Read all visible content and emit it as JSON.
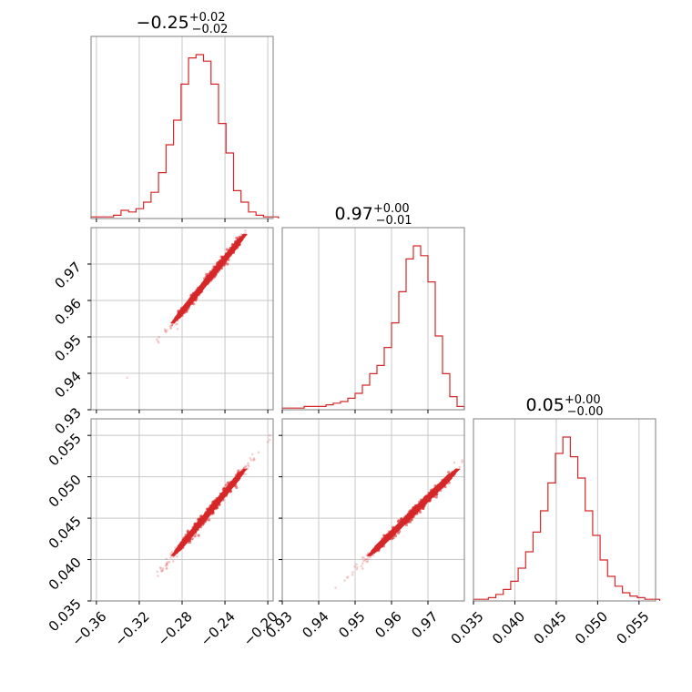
{
  "chart_data": {
    "type": "corner",
    "color": "#d62728",
    "parameters": [
      {
        "title": {
          "median": "−0.25",
          "plus": "+0.02",
          "minus": "−0.02"
        },
        "range": [
          -0.365,
          -0.195
        ],
        "ticks": [
          -0.36,
          -0.32,
          -0.28,
          -0.24,
          -0.2
        ],
        "tick_labels": [
          "−0.36",
          "−0.32",
          "−0.28",
          "−0.24",
          "−0.20"
        ],
        "hist_x": [
          -0.365,
          -0.358,
          -0.351,
          -0.344,
          -0.337,
          -0.33,
          -0.323,
          -0.316,
          -0.309,
          -0.302,
          -0.295,
          -0.288,
          -0.281,
          -0.274,
          -0.267,
          -0.26,
          -0.253,
          -0.246,
          -0.239,
          -0.232,
          -0.225,
          -0.218,
          -0.211,
          -0.204,
          -0.197
        ],
        "hist_y": [
          0.01,
          0.01,
          0.01,
          0.02,
          0.05,
          0.04,
          0.06,
          0.1,
          0.16,
          0.28,
          0.45,
          0.6,
          0.82,
          0.98,
          1.0,
          0.96,
          0.82,
          0.58,
          0.4,
          0.17,
          0.1,
          0.04,
          0.02,
          0.01,
          0.01
        ]
      },
      {
        "title": {
          "median": "0.97",
          "plus": "+0.00",
          "minus": "−0.01"
        },
        "range": [
          0.93,
          0.98
        ],
        "ticks": [
          0.93,
          0.94,
          0.95,
          0.96,
          0.97
        ],
        "tick_labels": [
          "0.93",
          "0.94",
          "0.95",
          "0.96",
          "0.97"
        ],
        "hist_x": [
          0.93,
          0.932,
          0.934,
          0.936,
          0.938,
          0.94,
          0.942,
          0.944,
          0.946,
          0.948,
          0.95,
          0.952,
          0.954,
          0.956,
          0.958,
          0.96,
          0.962,
          0.964,
          0.966,
          0.968,
          0.97,
          0.972,
          0.974,
          0.976,
          0.978
        ],
        "hist_y": [
          0.01,
          0.01,
          0.01,
          0.02,
          0.02,
          0.02,
          0.03,
          0.04,
          0.05,
          0.07,
          0.1,
          0.15,
          0.22,
          0.27,
          0.38,
          0.53,
          0.72,
          0.92,
          1.0,
          0.94,
          0.78,
          0.45,
          0.22,
          0.08,
          0.02
        ]
      },
      {
        "title": {
          "median": "0.05",
          "plus": "+0.00",
          "minus": "−0.00"
        },
        "range": [
          0.035,
          0.057
        ],
        "ticks": [
          0.035,
          0.04,
          0.045,
          0.05,
          0.055
        ],
        "tick_labels": [
          "0.035",
          "0.040",
          "0.045",
          "0.050",
          "0.055"
        ],
        "hist_x": [
          0.035,
          0.0359,
          0.0368,
          0.0377,
          0.0386,
          0.0395,
          0.0404,
          0.0413,
          0.0422,
          0.0431,
          0.044,
          0.0449,
          0.0458,
          0.0467,
          0.0476,
          0.0485,
          0.0494,
          0.0503,
          0.0512,
          0.0521,
          0.053,
          0.0539,
          0.0548,
          0.0557,
          0.0566
        ],
        "hist_y": [
          0.01,
          0.01,
          0.02,
          0.04,
          0.07,
          0.12,
          0.2,
          0.3,
          0.42,
          0.55,
          0.72,
          0.9,
          1.0,
          0.88,
          0.75,
          0.55,
          0.4,
          0.25,
          0.15,
          0.09,
          0.05,
          0.03,
          0.02,
          0.01,
          0.01
        ]
      }
    ],
    "grid": true
  }
}
